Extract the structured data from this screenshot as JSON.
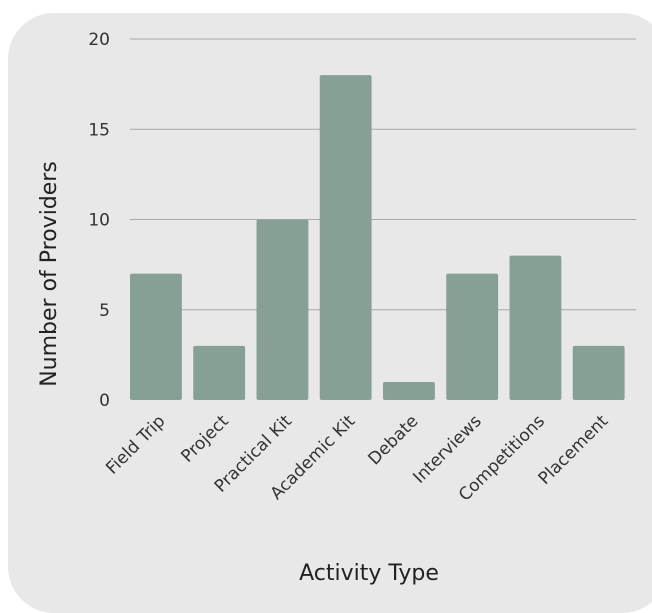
{
  "chart_data": {
    "type": "bar",
    "categories": [
      "Field Trip",
      "Project",
      "Practical Kit",
      "Academic Kit",
      "Debate",
      "Interviews",
      "Competitions",
      "Placement"
    ],
    "values": [
      7,
      3,
      10,
      18,
      1,
      7,
      8,
      3
    ],
    "title": "",
    "xlabel": "Activity Type",
    "ylabel": "Number of Providers",
    "ylim": [
      0,
      20
    ],
    "yticks": [
      0,
      5,
      10,
      15,
      20
    ],
    "grid": true,
    "legend": "none",
    "colors": {
      "bar": "#87a096",
      "background": "#e8e8e8",
      "grid": "#a8a8a8"
    }
  }
}
